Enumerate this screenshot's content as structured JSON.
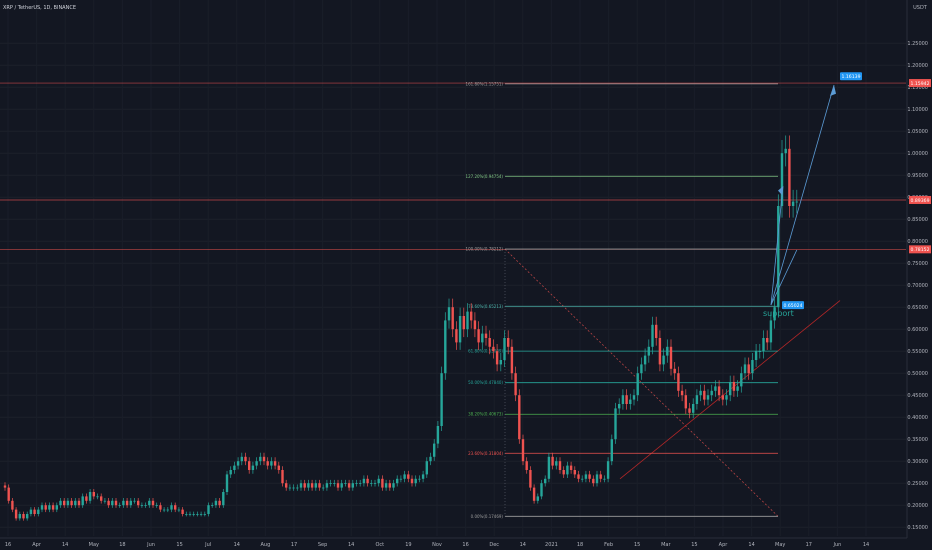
{
  "header": {
    "symbol_line": "XRP / TetherUS, 1D, BINANCE",
    "currency": "USDT"
  },
  "chart_data": {
    "type": "candlestick",
    "title": "XRP / TetherUS, 1D, BINANCE",
    "ylim": [
      0.13,
      1.33
    ],
    "y_ticks": [
      "1.25000",
      "1.20000",
      "1.15000",
      "1.10000",
      "1.05000",
      "1.00000",
      "0.95000",
      "0.90000",
      "0.85000",
      "0.80000",
      "0.75000",
      "0.70000",
      "0.65000",
      "0.60000",
      "0.55000",
      "0.50000",
      "0.45000",
      "0.40000",
      "0.35000",
      "0.30000",
      "0.25000",
      "0.20000",
      "0.15000"
    ],
    "x_ticks": [
      "16",
      "Apr",
      "14",
      "May",
      "18",
      "Jun",
      "15",
      "Jul",
      "14",
      "Aug",
      "17",
      "Sep",
      "14",
      "Oct",
      "19",
      "Nov",
      "16",
      "Dec",
      "14",
      "2021",
      "18",
      "Feb",
      "15",
      "Mar",
      "15",
      "Apr",
      "14",
      "May",
      "17",
      "Jun",
      "14"
    ],
    "price_tags": [
      {
        "label": "1.15942",
        "value": 1.15942,
        "color": "#ef5350"
      },
      {
        "label": "0.89369",
        "value": 0.89369,
        "color": "#ef5350"
      },
      {
        "label": "0.78152",
        "value": 0.78152,
        "color": "#ef5350"
      }
    ],
    "fib_levels": [
      {
        "label": "161.80%(1.15751)",
        "value": 1.15751,
        "color": "#9e9e9e"
      },
      {
        "label": "127.20%(0.94754)",
        "value": 0.94754,
        "color": "#81c784"
      },
      {
        "label": "100.00%(0.78212)",
        "value": 0.78212,
        "color": "#9e9e9e"
      },
      {
        "label": "78.60%(0.65213)",
        "value": 0.65213,
        "color": "#4db6ac"
      },
      {
        "label": "61.80%(0.55009)",
        "value": 0.55009,
        "color": "#26a69a"
      },
      {
        "label": "50.00%(0.47840)",
        "value": 0.4784,
        "color": "#26a69a"
      },
      {
        "label": "38.20%(0.40673)",
        "value": 0.40673,
        "color": "#4caf50"
      },
      {
        "label": "23.60%(0.31804)",
        "value": 0.31804,
        "color": "#ef5350"
      },
      {
        "label": "0.00%(0.17469)",
        "value": 0.17469,
        "color": "#9e9e9e"
      }
    ],
    "annotations": [
      {
        "label": "1.16139",
        "value": 1.16139,
        "kind": "callout"
      },
      {
        "label": "0.65024",
        "value": 0.65024,
        "kind": "callout"
      },
      {
        "label": "support",
        "kind": "text"
      }
    ],
    "close_series": [
      0.24,
      0.21,
      0.19,
      0.17,
      0.18,
      0.17,
      0.18,
      0.19,
      0.18,
      0.19,
      0.2,
      0.19,
      0.2,
      0.19,
      0.2,
      0.21,
      0.2,
      0.21,
      0.2,
      0.21,
      0.2,
      0.22,
      0.21,
      0.23,
      0.22,
      0.22,
      0.21,
      0.21,
      0.2,
      0.21,
      0.2,
      0.2,
      0.21,
      0.2,
      0.21,
      0.21,
      0.2,
      0.2,
      0.2,
      0.21,
      0.2,
      0.2,
      0.19,
      0.19,
      0.19,
      0.2,
      0.19,
      0.19,
      0.18,
      0.18,
      0.18,
      0.18,
      0.18,
      0.18,
      0.18,
      0.2,
      0.2,
      0.21,
      0.2,
      0.23,
      0.27,
      0.28,
      0.29,
      0.3,
      0.31,
      0.3,
      0.28,
      0.29,
      0.3,
      0.31,
      0.3,
      0.29,
      0.3,
      0.29,
      0.28,
      0.25,
      0.24,
      0.24,
      0.24,
      0.24,
      0.25,
      0.24,
      0.25,
      0.24,
      0.25,
      0.24,
      0.24,
      0.25,
      0.25,
      0.25,
      0.24,
      0.25,
      0.25,
      0.24,
      0.25,
      0.25,
      0.25,
      0.26,
      0.25,
      0.25,
      0.25,
      0.26,
      0.24,
      0.25,
      0.24,
      0.25,
      0.26,
      0.26,
      0.27,
      0.26,
      0.25,
      0.26,
      0.26,
      0.27,
      0.3,
      0.31,
      0.34,
      0.38,
      0.5,
      0.62,
      0.65,
      0.6,
      0.57,
      0.63,
      0.6,
      0.64,
      0.62,
      0.6,
      0.57,
      0.59,
      0.58,
      0.56,
      0.55,
      0.52,
      0.53,
      0.58,
      0.56,
      0.5,
      0.45,
      0.35,
      0.3,
      0.28,
      0.24,
      0.21,
      0.22,
      0.25,
      0.26,
      0.31,
      0.29,
      0.3,
      0.28,
      0.27,
      0.29,
      0.28,
      0.27,
      0.26,
      0.26,
      0.27,
      0.26,
      0.25,
      0.27,
      0.26,
      0.26,
      0.3,
      0.35,
      0.42,
      0.43,
      0.45,
      0.43,
      0.44,
      0.45,
      0.5,
      0.52,
      0.54,
      0.56,
      0.61,
      0.58,
      0.52,
      0.54,
      0.56,
      0.51,
      0.5,
      0.46,
      0.45,
      0.42,
      0.41,
      0.43,
      0.45,
      0.46,
      0.44,
      0.45,
      0.46,
      0.47,
      0.45,
      0.44,
      0.45,
      0.48,
      0.46,
      0.47,
      0.5,
      0.52,
      0.5,
      0.53,
      0.55,
      0.55,
      0.58,
      0.57,
      0.62,
      0.65,
      0.88,
      1.0,
      1.01,
      0.88,
      0.89,
      0.89
    ]
  }
}
